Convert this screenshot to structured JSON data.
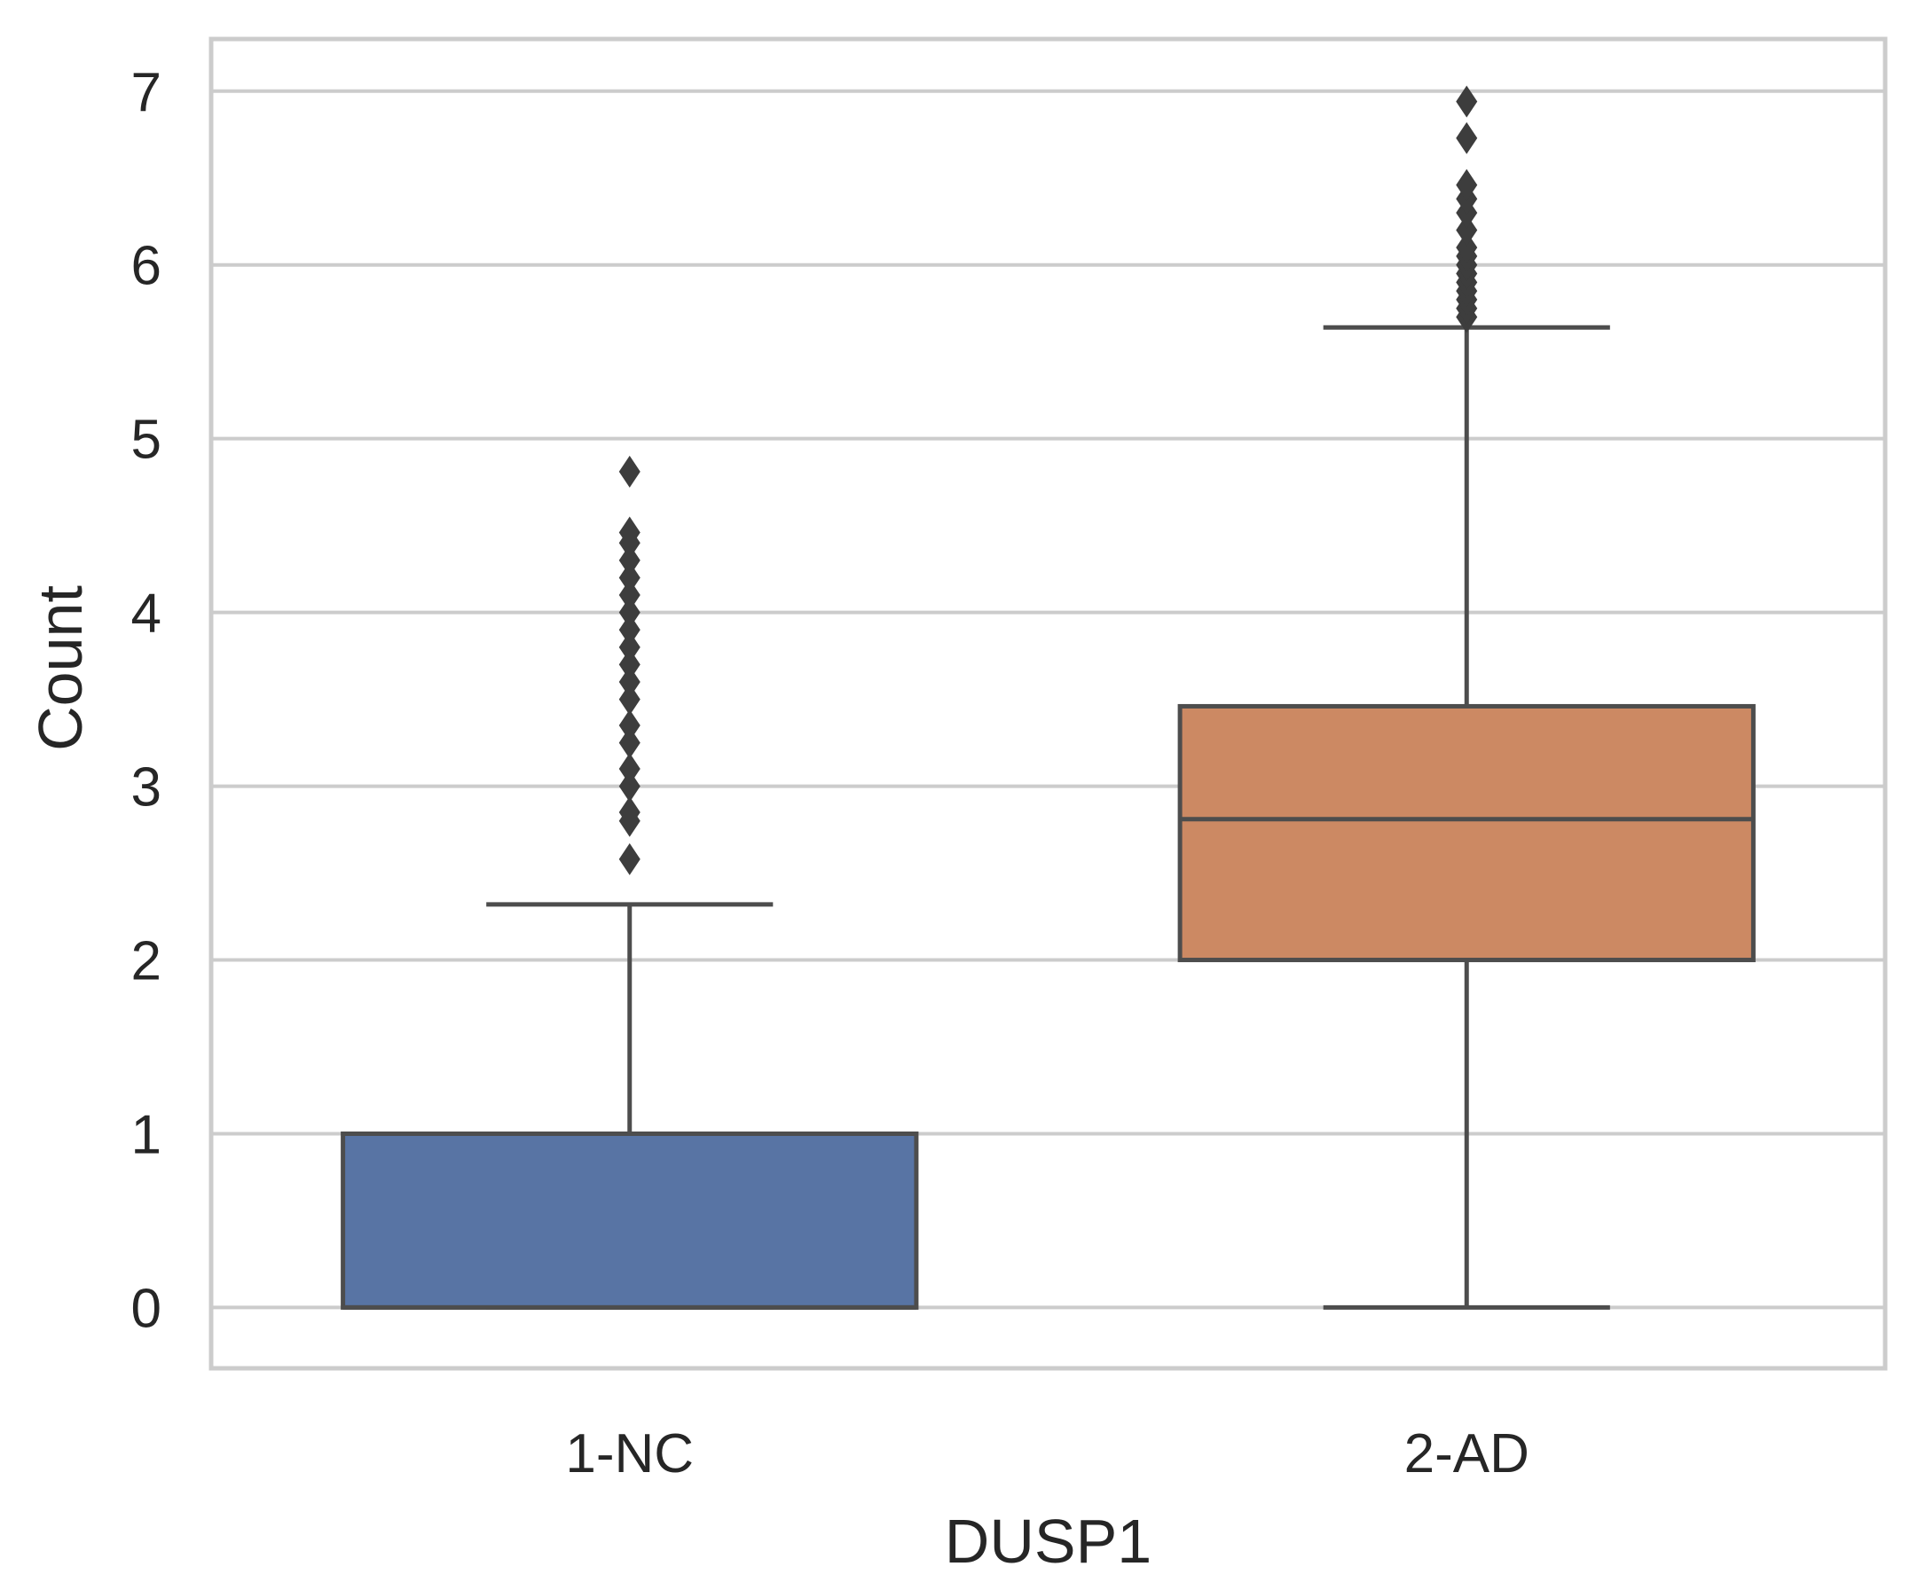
{
  "chart_data": {
    "type": "box",
    "xlabel": "DUSP1",
    "ylabel": "Count",
    "ylim": [
      -0.35,
      7.3
    ],
    "yticks": [
      0,
      1,
      2,
      3,
      4,
      5,
      6,
      7
    ],
    "grid": "horizontal",
    "categories": [
      "1-NC",
      "2-AD"
    ],
    "boxes": [
      {
        "category": "1-NC",
        "color": "#5874a4",
        "whisker_low": 0,
        "q1": 0,
        "median": 0,
        "q3": 1,
        "whisker_high": 2.32,
        "outliers": [
          2.58,
          2.8,
          2.85,
          3.0,
          3.1,
          3.25,
          3.35,
          3.5,
          3.6,
          3.7,
          3.8,
          3.9,
          4.0,
          4.1,
          4.2,
          4.3,
          4.4,
          4.46,
          4.81
        ]
      },
      {
        "category": "2-AD",
        "color": "#cc8963",
        "whisker_low": 0,
        "q1": 2,
        "median": 2.81,
        "q3": 3.46,
        "whisker_high": 5.64,
        "outliers": [
          5.7,
          5.75,
          5.8,
          5.85,
          5.9,
          5.95,
          6.0,
          6.05,
          6.1,
          6.2,
          6.3,
          6.38,
          6.46,
          6.73,
          6.94
        ]
      }
    ]
  }
}
